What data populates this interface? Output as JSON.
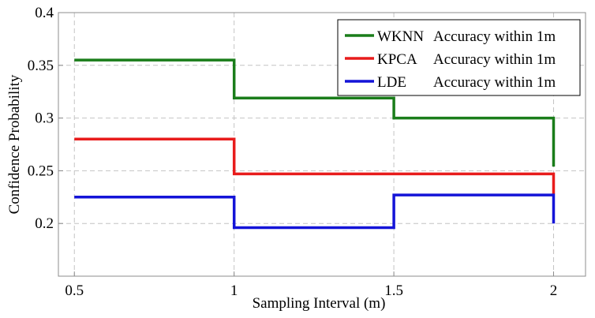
{
  "chart_data": {
    "type": "line",
    "step": true,
    "title": "",
    "xlabel": "Sampling Interval (m)",
    "ylabel": "Confidence Probability",
    "xlim": [
      0.45,
      2.1
    ],
    "ylim": [
      0.15,
      0.4
    ],
    "grid": true,
    "legend_position": "top-right",
    "x_ticks": [
      {
        "value": 0.5,
        "label": "0.5"
      },
      {
        "value": 1,
        "label": "1"
      },
      {
        "value": 1.5,
        "label": "1.5"
      },
      {
        "value": 2,
        "label": "2"
      }
    ],
    "y_ticks": [
      {
        "value": 0.2,
        "label": "0.2"
      },
      {
        "value": 0.25,
        "label": "0.25"
      },
      {
        "value": 0.3,
        "label": "0.3"
      },
      {
        "value": 0.35,
        "label": "0.35"
      },
      {
        "value": 0.4,
        "label": "0.4"
      }
    ],
    "series": [
      {
        "name": "WKNN Accuracy within 1m",
        "label_method": "WKNN",
        "label_rest": "Accuracy within 1m",
        "color": "#1a7d1a",
        "points": [
          [
            0.5,
            0.355
          ],
          [
            1,
            0.355
          ],
          [
            1,
            0.319
          ],
          [
            1.5,
            0.319
          ],
          [
            1.5,
            0.3
          ],
          [
            2,
            0.3
          ],
          [
            2,
            0.254
          ]
        ]
      },
      {
        "name": "KPCA Accuracy within 1m",
        "label_method": "KPCA",
        "label_rest": "Accuracy within 1m",
        "color": "#e81c1c",
        "points": [
          [
            0.5,
            0.28
          ],
          [
            1,
            0.28
          ],
          [
            1,
            0.247
          ],
          [
            2,
            0.247
          ],
          [
            2,
            0.228
          ]
        ]
      },
      {
        "name": "LDE Accuracy within 1m",
        "label_method": "LDE",
        "label_rest": "Accuracy within 1m",
        "color": "#1414d8",
        "points": [
          [
            0.5,
            0.225
          ],
          [
            1,
            0.225
          ],
          [
            1,
            0.196
          ],
          [
            1.5,
            0.196
          ],
          [
            1.5,
            0.227
          ],
          [
            2,
            0.227
          ],
          [
            2,
            0.2
          ]
        ]
      }
    ]
  }
}
